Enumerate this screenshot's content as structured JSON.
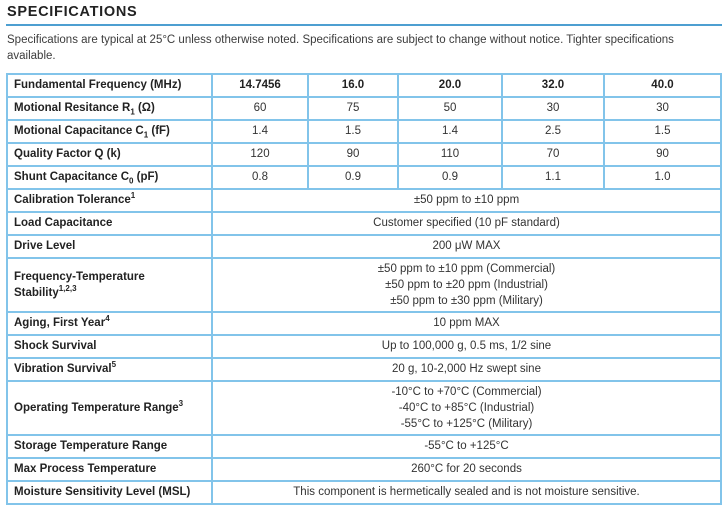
{
  "page": {
    "title": "SPECIFICATIONS",
    "intro": "Specifications are typical at 25°C unless otherwise noted. Specifications are subject to change without notice. Tighter specifications available."
  },
  "colors": {
    "border_outer": "#4d9fd1",
    "border_inner": "#82c4ea",
    "title_rule": "#4d9fd1"
  },
  "table": {
    "param_rows": [
      {
        "pre": "Fundamental Frequency (MHz)",
        "values": [
          "14.7456",
          "16.0",
          "20.0",
          "32.0",
          "40.0"
        ]
      },
      {
        "pre": "Motional Resitance R",
        "sub": "1",
        "mid": " (Ω)",
        "values": [
          "60",
          "75",
          "50",
          "30",
          "30"
        ]
      },
      {
        "pre": "Motional Capacitance C",
        "sub": "1",
        "mid": " (fF)",
        "values": [
          "1.4",
          "1.5",
          "1.4",
          "2.5",
          "1.5"
        ]
      },
      {
        "pre": "Quality Factor Q (k)",
        "values": [
          "120",
          "90",
          "110",
          "70",
          "90"
        ]
      },
      {
        "pre": "Shunt Capacitance C",
        "sub": "0",
        "mid": " (pF)",
        "values": [
          "0.8",
          "0.9",
          "0.9",
          "1.1",
          "1.0"
        ]
      }
    ],
    "merged_rows": [
      {
        "pre": "Calibration Tolerance",
        "sup": "1",
        "lines": [
          "±50 ppm to ±10 ppm"
        ]
      },
      {
        "pre": "Load Capacitance",
        "lines": [
          "Customer specified (10 pF standard)"
        ]
      },
      {
        "pre": "Drive Level",
        "lines": [
          "200 μW MAX"
        ]
      },
      {
        "pre": "Frequency-Temperature Stability",
        "sup": "1,2,3",
        "lines": [
          "±50 ppm to ±10 ppm (Commercial)",
          "±50 ppm to ±20 ppm (Industrial)",
          "±50 ppm to ±30 ppm (Military)"
        ]
      },
      {
        "pre": "Aging, First Year",
        "sup": "4",
        "lines": [
          "10 ppm MAX"
        ]
      },
      {
        "pre": "Shock Survival",
        "lines": [
          "Up to 100,000 g, 0.5 ms, 1/2 sine"
        ]
      },
      {
        "pre": "Vibration Survival",
        "sup": "5",
        "lines": [
          "20 g, 10-2,000 Hz swept sine"
        ]
      },
      {
        "pre": "Operating Temperature Range",
        "sup": "3",
        "lines": [
          "-10°C to +70°C (Commercial)",
          "-40°C to +85°C (Industrial)",
          "-55°C to +125°C (Military)"
        ]
      },
      {
        "pre": "Storage Temperature Range",
        "lines": [
          "-55°C to +125°C"
        ]
      },
      {
        "pre": "Max Process Temperature",
        "lines": [
          "260°C for 20 seconds"
        ]
      },
      {
        "pre": "Moisture Sensitivity Level (MSL)",
        "lines": [
          "This component is hermetically sealed and is not moisture sensitive."
        ]
      }
    ]
  }
}
